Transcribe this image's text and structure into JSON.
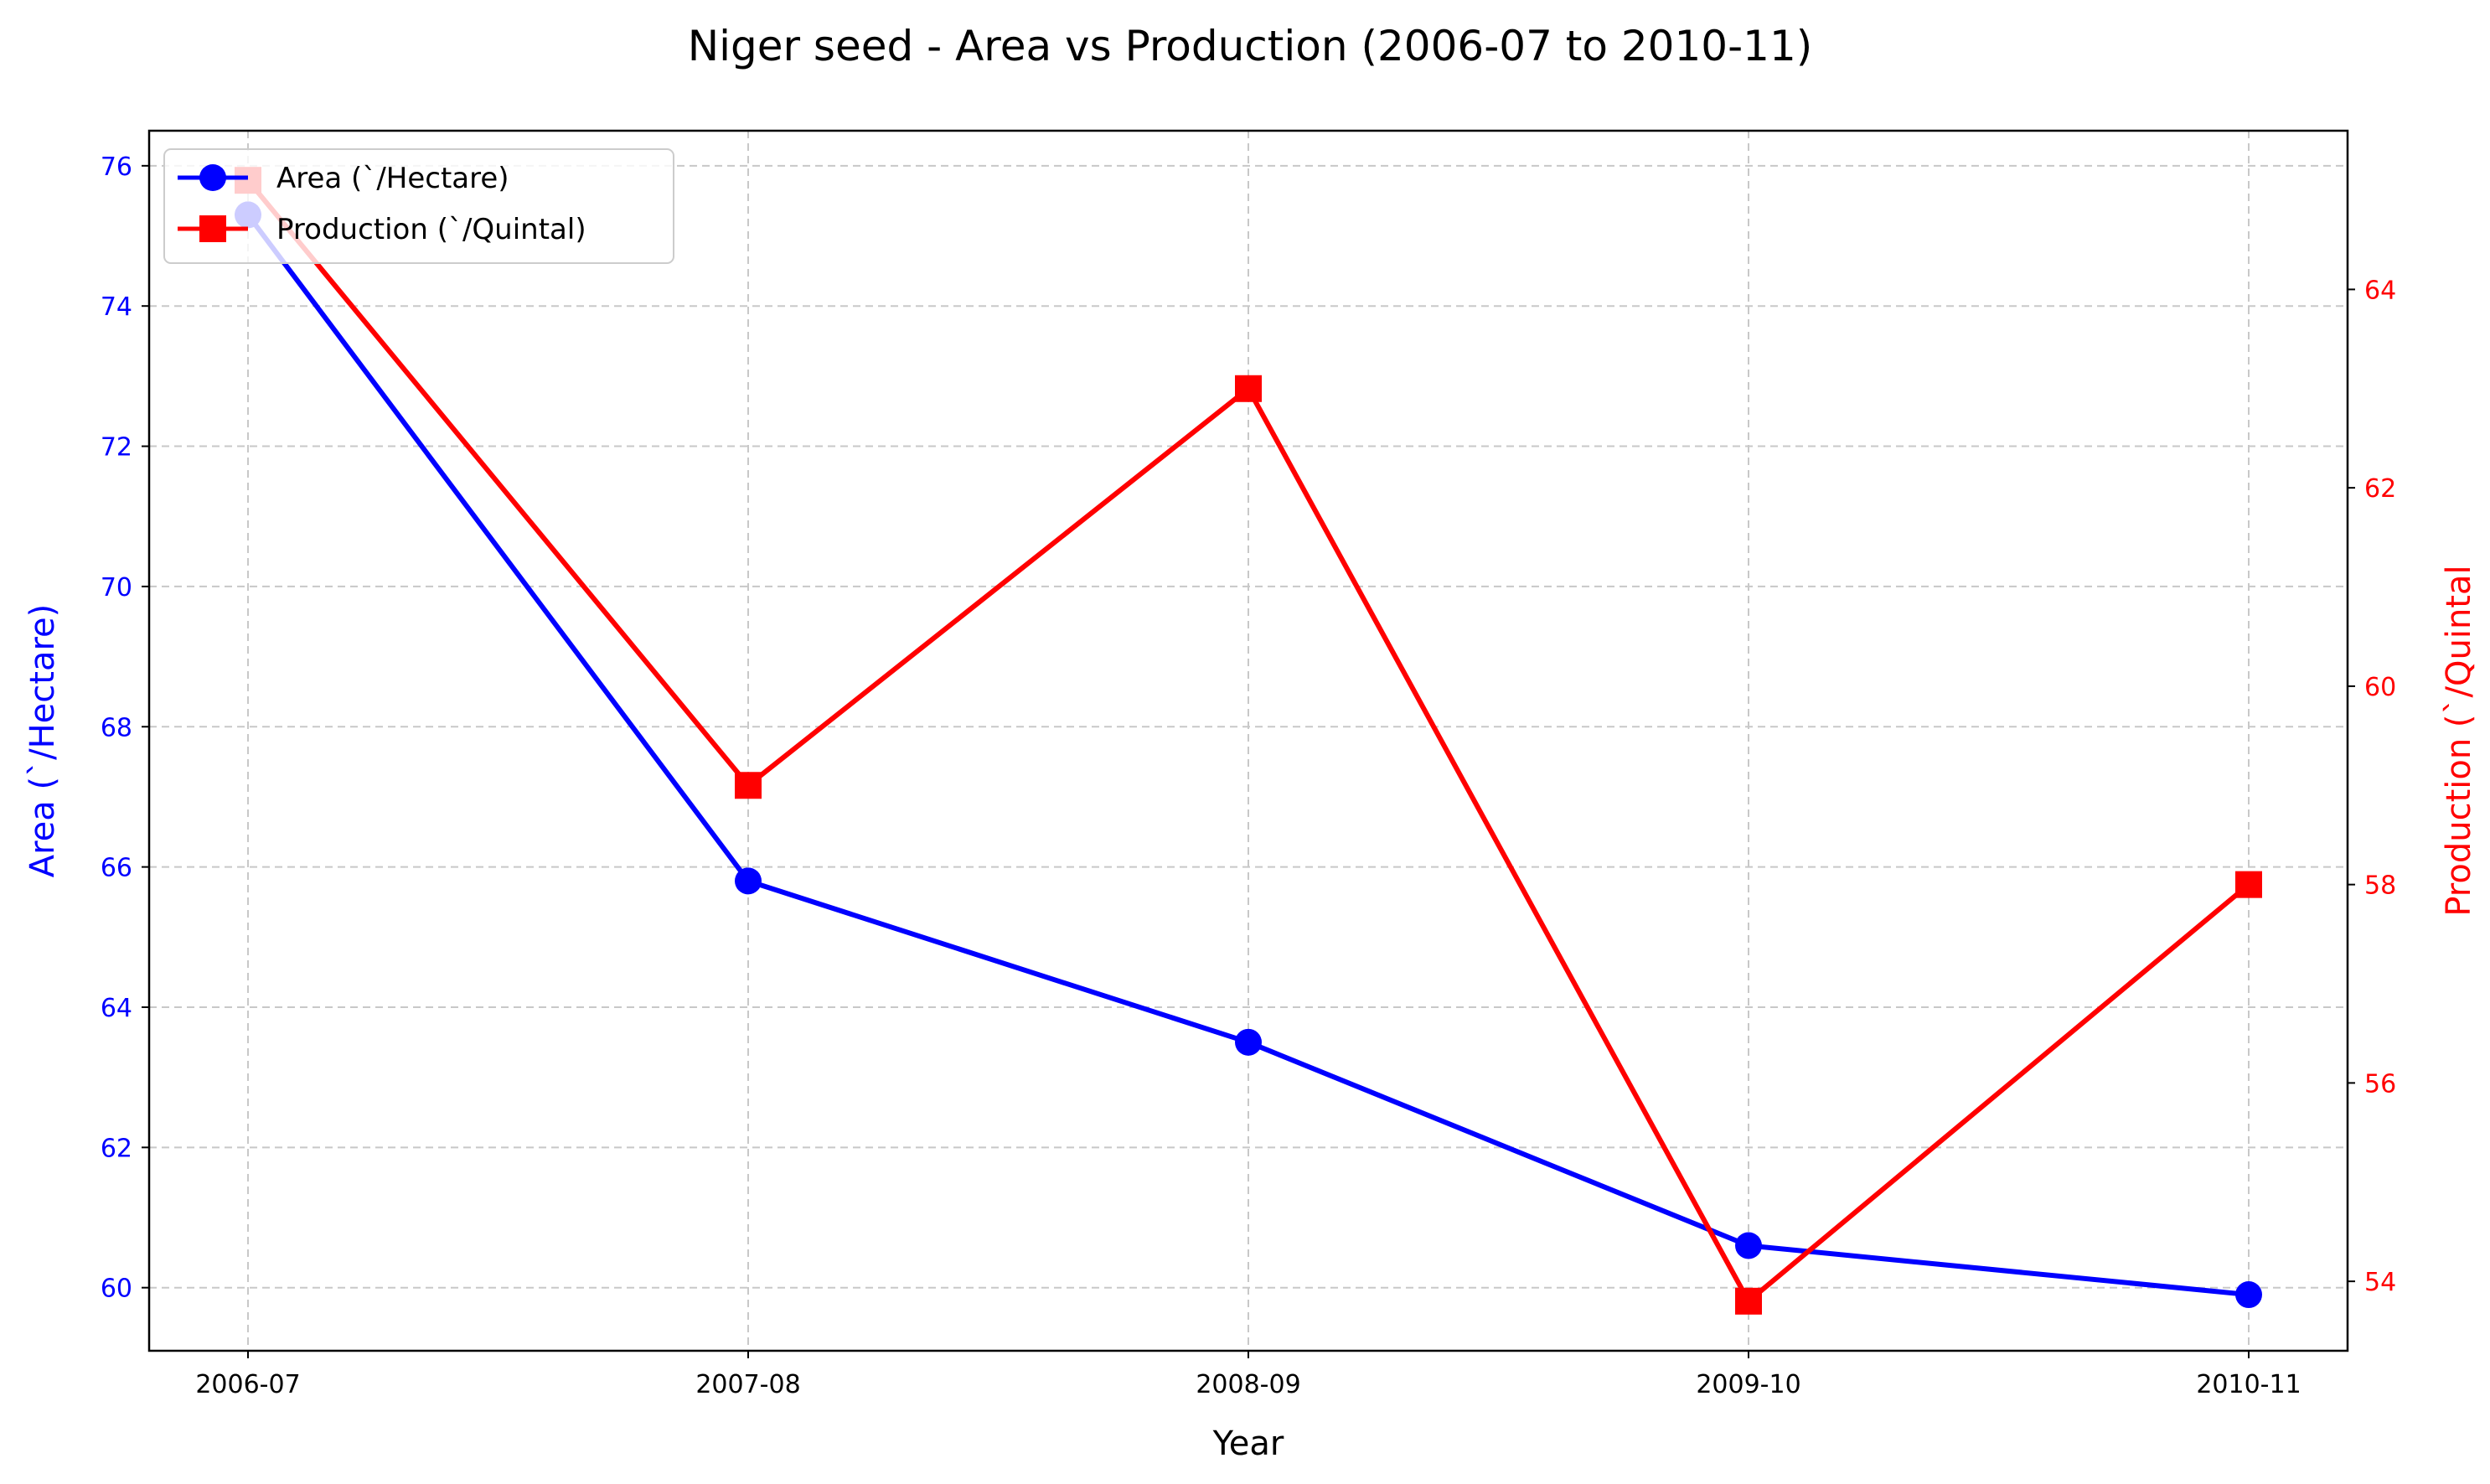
{
  "chart_data": {
    "type": "line",
    "title": "Niger seed - Area vs Production (2006-07 to 2010-11)",
    "xlabel": "Year",
    "categories": [
      "2006-07",
      "2007-08",
      "2008-09",
      "2009-10",
      "2010-11"
    ],
    "grid": true,
    "legend_position": "top-left",
    "series": [
      {
        "name": "Area (`/Hectare)",
        "axis": "left",
        "color": "#0000ff",
        "marker": "circle",
        "values": [
          75.3,
          65.8,
          63.5,
          60.6,
          59.9
        ]
      },
      {
        "name": "Production (`/Quintal)",
        "axis": "right",
        "color": "#ff0000",
        "marker": "square",
        "values": [
          65.1,
          59.0,
          63.0,
          53.8,
          58.0
        ]
      }
    ],
    "y_left": {
      "label": "Area (`/Hectare)",
      "color": "#0000ff",
      "ylim": [
        59.1,
        76.5
      ],
      "ticks": [
        "60",
        "62",
        "64",
        "66",
        "68",
        "70",
        "72",
        "74",
        "76"
      ]
    },
    "y_right": {
      "label": "Production (`/Quintal",
      "color": "#ff0000",
      "ylim": [
        53.3,
        65.6
      ],
      "ticks": [
        "54",
        "56",
        "58",
        "60",
        "62",
        "64"
      ]
    }
  }
}
